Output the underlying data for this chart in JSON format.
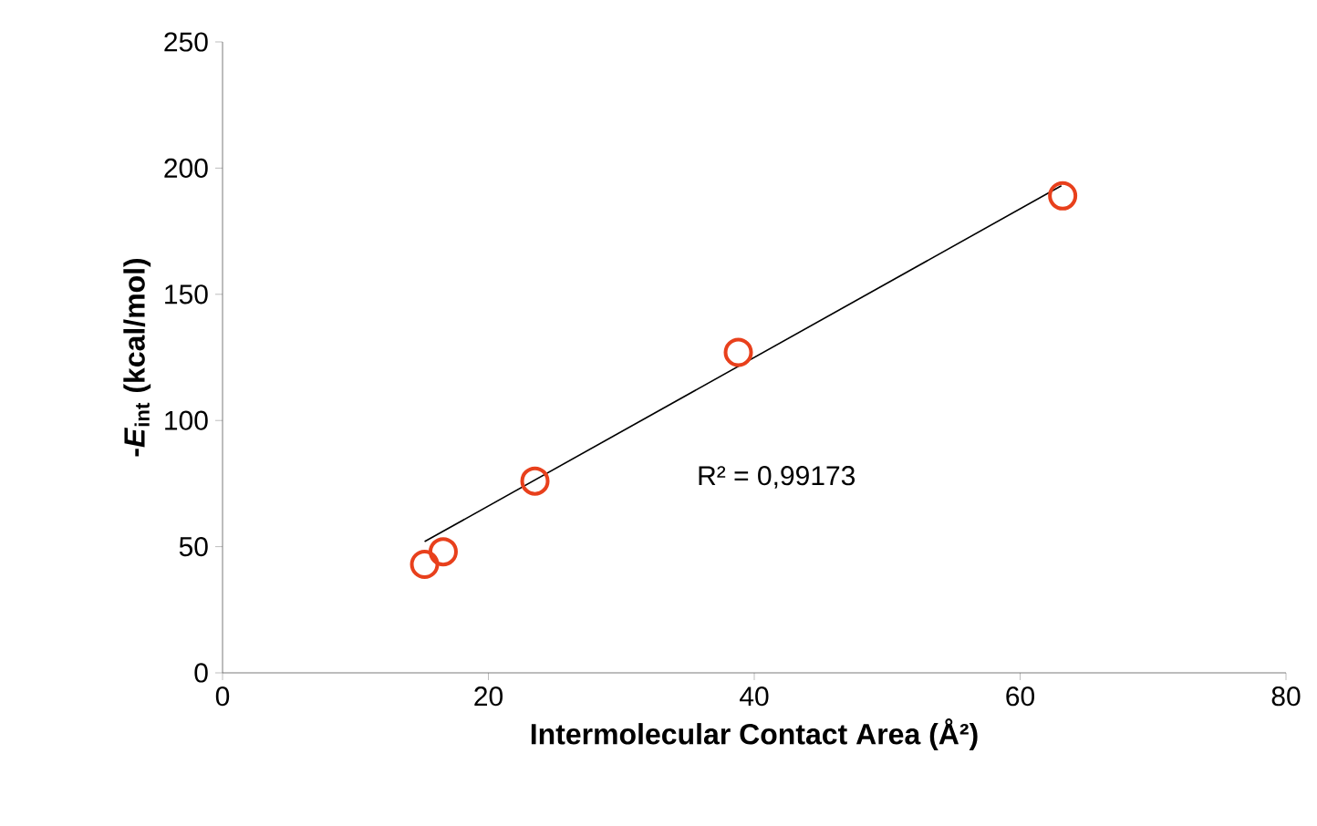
{
  "chart_data": {
    "type": "scatter",
    "xlabel": "Intermolecular Contact Area (Å²)",
    "ylabel": "-*E*$_{int}$ (kcal/mol)",
    "xlim": [
      0,
      80
    ],
    "xticks": [
      0,
      20,
      40,
      60,
      80
    ],
    "ylim": [
      0,
      250
    ],
    "yticks": [
      0,
      50,
      100,
      150,
      200,
      250
    ],
    "grid": false,
    "marker": "circle",
    "annotations": [
      "R² = 0,99173"
    ],
    "series": [
      {
        "color": "#e8401c",
        "x": [
          15.2,
          16.6,
          23.5,
          38.8,
          63.2
        ],
        "values": [
          43,
          48,
          76,
          127,
          189
        ]
      },
      {
        "type": "line",
        "color": "#000000",
        "line_style": "solid",
        "marker": "none",
        "x": [
          15.2,
          63.1
        ],
        "values": [
          52,
          193
        ]
      }
    ]
  }
}
